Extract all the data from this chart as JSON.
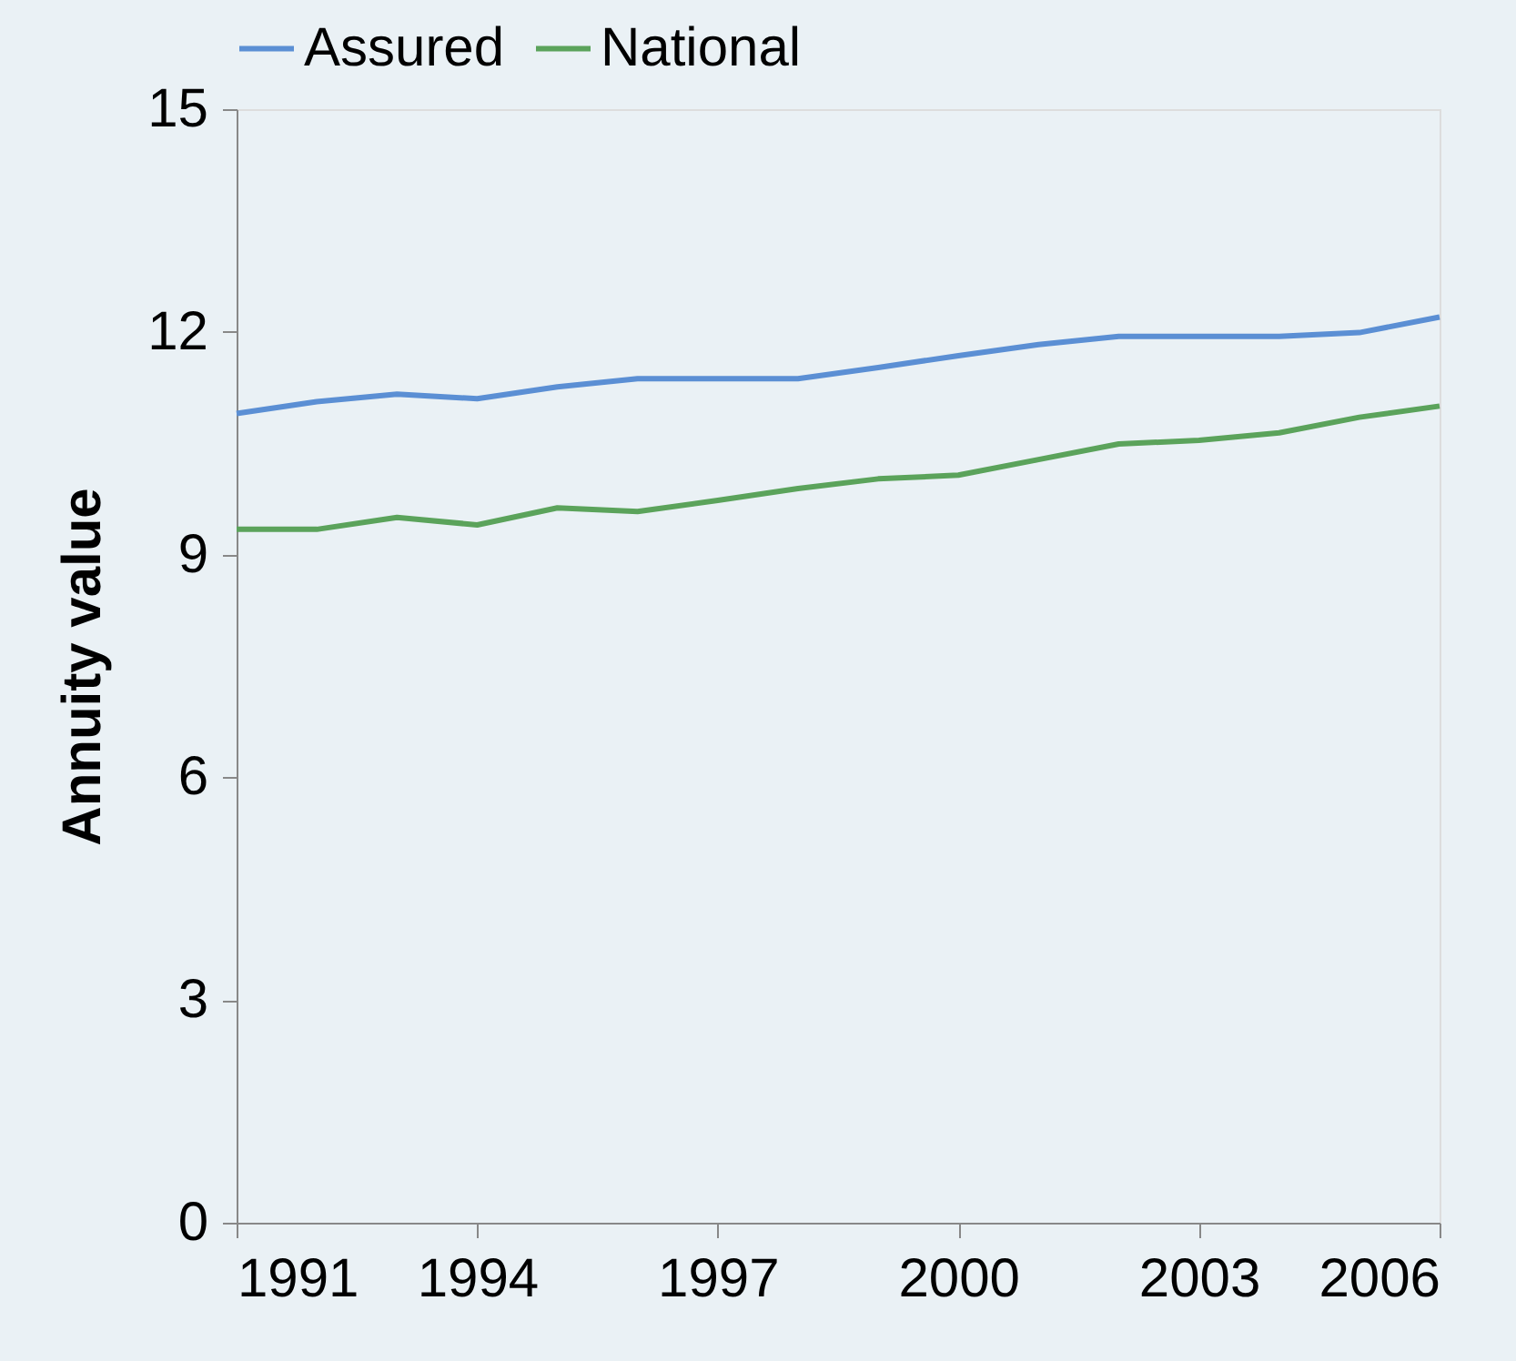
{
  "chart_data": {
    "type": "line",
    "ylabel": "Annuity value",
    "x": [
      1991,
      1992,
      1993,
      1994,
      1995,
      1996,
      1997,
      1998,
      1999,
      2000,
      2001,
      2002,
      2003,
      2004,
      2005,
      2006
    ],
    "series": [
      {
        "name": "Assured",
        "color": "#5b8fd4",
        "values": [
          10.9,
          11.06,
          11.16,
          11.1,
          11.26,
          11.37,
          11.37,
          11.37,
          11.52,
          11.68,
          11.83,
          11.94,
          11.94,
          11.94,
          11.99,
          12.2
        ]
      },
      {
        "name": "National",
        "color": "#5ba35b",
        "values": [
          9.34,
          9.34,
          9.5,
          9.4,
          9.63,
          9.58,
          9.73,
          9.89,
          10.02,
          10.07,
          10.28,
          10.49,
          10.54,
          10.64,
          10.85,
          11.0
        ]
      }
    ],
    "xlim": [
      1991,
      2006
    ],
    "xticks": [
      1991,
      1994,
      1997,
      2000,
      2003,
      2006
    ],
    "ylim": [
      0,
      15
    ],
    "yticks": [
      0,
      3,
      6,
      9,
      12,
      15
    ],
    "grid": false,
    "legend": "top",
    "marker": "none",
    "line_style": "solid"
  }
}
